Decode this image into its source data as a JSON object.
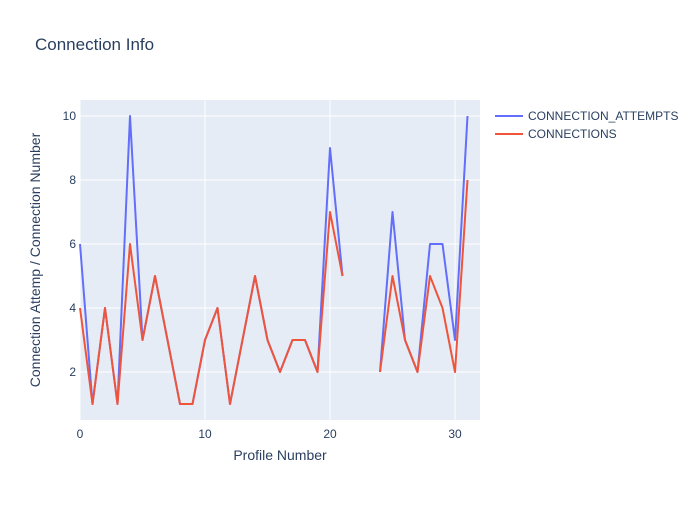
{
  "chart_data": {
    "type": "line",
    "title": "Connection Info",
    "xlabel": "Profile Number",
    "ylabel": "Connection Attemp / Connection Number",
    "xlim": [
      0,
      32
    ],
    "ylim": [
      0.5,
      10.5
    ],
    "xticks": [
      0,
      10,
      20,
      30
    ],
    "yticks": [
      2,
      4,
      6,
      8,
      10
    ],
    "grid": true,
    "legend_position": "top-right",
    "x": [
      0,
      1,
      2,
      3,
      4,
      5,
      6,
      7,
      8,
      9,
      10,
      11,
      12,
      13,
      14,
      15,
      16,
      17,
      18,
      19,
      20,
      21,
      22,
      23,
      24,
      25,
      26,
      27,
      28,
      29,
      30,
      31
    ],
    "series": [
      {
        "name": "CONNECTION_ATTEMPTS",
        "color": "#636efa",
        "values": [
          6,
          1,
          4,
          1,
          10,
          3,
          5,
          3,
          1,
          1,
          3,
          4,
          1,
          3,
          5,
          3,
          2,
          3,
          3,
          2,
          9,
          5,
          null,
          null,
          2,
          7,
          3,
          2,
          6,
          6,
          3,
          10
        ]
      },
      {
        "name": "CONNECTIONS",
        "color": "#ef553b",
        "values": [
          4,
          1,
          4,
          1,
          6,
          3,
          5,
          3,
          1,
          1,
          3,
          4,
          1,
          3,
          5,
          3,
          2,
          3,
          3,
          2,
          7,
          5,
          null,
          null,
          2,
          5,
          3,
          2,
          5,
          4,
          2,
          8
        ]
      }
    ]
  }
}
